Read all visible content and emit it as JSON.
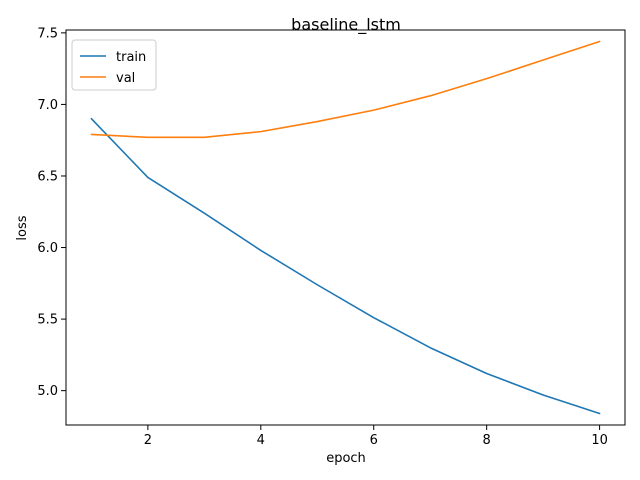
{
  "chart_data": {
    "type": "line",
    "title": "baseline_lstm",
    "xlabel": "epoch",
    "ylabel": "loss",
    "xlim": [
      0.55,
      10.45
    ],
    "ylim": [
      4.76,
      7.52
    ],
    "x": [
      1,
      2,
      3,
      4,
      5,
      6,
      7,
      8,
      9,
      10
    ],
    "xticks": [
      2,
      4,
      6,
      8,
      10
    ],
    "xtick_labels": [
      "2",
      "4",
      "6",
      "8",
      "10"
    ],
    "yticks": [
      5.0,
      5.5,
      6.0,
      6.5,
      7.0,
      7.5
    ],
    "ytick_labels": [
      "5.0",
      "5.5",
      "6.0",
      "6.5",
      "7.0",
      "7.5"
    ],
    "grid": false,
    "legend_position": "top-left",
    "series": [
      {
        "name": "train",
        "color": "#1f77b4",
        "values": [
          6.9,
          6.49,
          6.24,
          5.98,
          5.74,
          5.51,
          5.3,
          5.12,
          4.97,
          4.84
        ]
      },
      {
        "name": "val",
        "color": "#ff7f0e",
        "values": [
          6.79,
          6.77,
          6.77,
          6.81,
          6.88,
          6.96,
          7.06,
          7.18,
          7.31,
          7.44
        ]
      }
    ]
  }
}
